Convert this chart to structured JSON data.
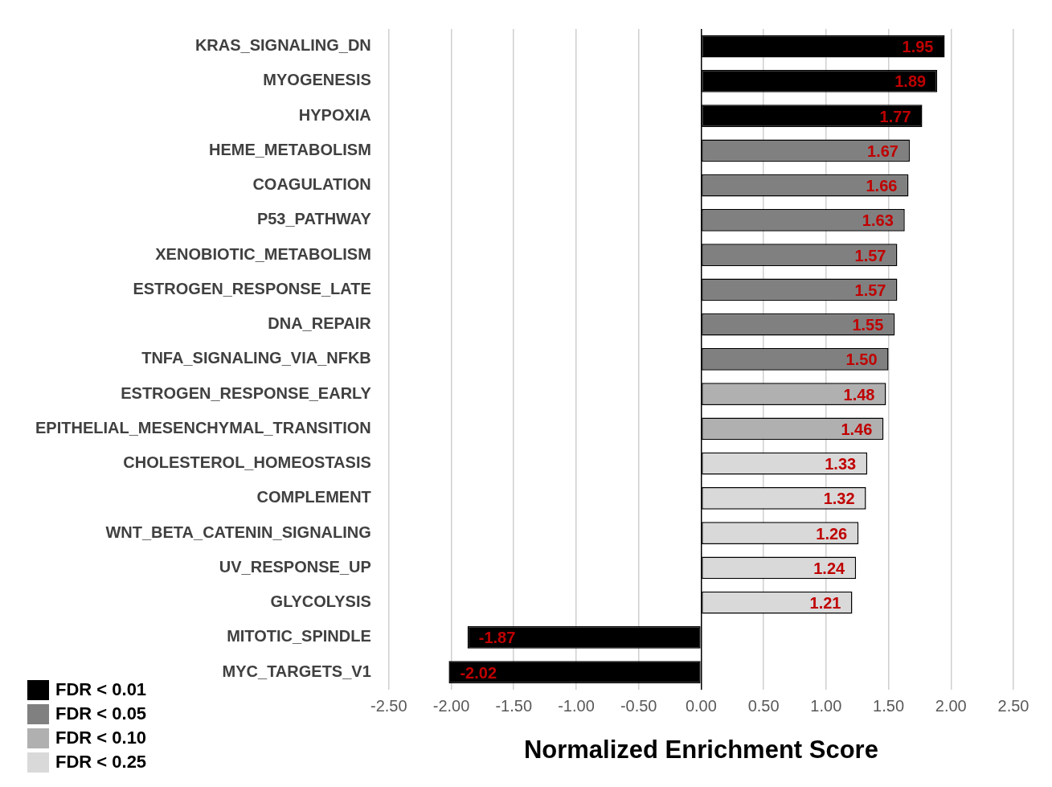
{
  "chart_data": {
    "type": "bar",
    "orientation": "horizontal",
    "xlabel": "Normalized Enrichment Score",
    "categories": [
      "KRAS_SIGNALING_DN",
      "MYOGENESIS",
      "HYPOXIA",
      "HEME_METABOLISM",
      "COAGULATION",
      "P53_PATHWAY",
      "XENOBIOTIC_METABOLISM",
      "ESTROGEN_RESPONSE_LATE",
      "DNA_REPAIR",
      "TNFA_SIGNALING_VIA_NFKB",
      "ESTROGEN_RESPONSE_EARLY",
      "EPITHELIAL_MESENCHYMAL_TRANSITION",
      "CHOLESTEROL_HOMEOSTASIS",
      "COMPLEMENT",
      "WNT_BETA_CATENIN_SIGNALING",
      "UV_RESPONSE_UP",
      "GLYCOLYSIS",
      "MITOTIC_SPINDLE",
      "MYC_TARGETS_V1"
    ],
    "series": [
      {
        "name": "FDR < 0.01",
        "color": "#000000",
        "values": [
          1.95,
          1.89,
          1.77,
          null,
          null,
          null,
          null,
          null,
          null,
          null,
          null,
          null,
          null,
          null,
          null,
          null,
          null,
          -1.87,
          -2.02
        ],
        "value_labels": [
          "1.95",
          "1.89",
          "1.77",
          null,
          null,
          null,
          null,
          null,
          null,
          null,
          null,
          null,
          null,
          null,
          null,
          null,
          null,
          "-1.87",
          "-2.02"
        ]
      },
      {
        "name": "FDR < 0.05",
        "color": "#808080",
        "values": [
          null,
          null,
          null,
          1.67,
          1.66,
          1.63,
          1.57,
          1.57,
          1.55,
          1.5,
          null,
          null,
          null,
          null,
          null,
          null,
          null,
          null,
          null
        ],
        "value_labels": [
          null,
          null,
          null,
          "1.67",
          "1.66",
          "1.63",
          "1.57",
          "1.57",
          "1.55",
          "1.50",
          null,
          null,
          null,
          null,
          null,
          null,
          null,
          null,
          null
        ]
      },
      {
        "name": "FDR < 0.10",
        "color": "#b0b0b0",
        "values": [
          null,
          null,
          null,
          null,
          null,
          null,
          null,
          null,
          null,
          null,
          1.48,
          1.46,
          null,
          null,
          null,
          null,
          null,
          null,
          null
        ],
        "value_labels": [
          null,
          null,
          null,
          null,
          null,
          null,
          null,
          null,
          null,
          null,
          "1.48",
          "1.46",
          null,
          null,
          null,
          null,
          null,
          null,
          null
        ]
      },
      {
        "name": "FDR < 0.25",
        "color": "#d9d9d9",
        "values": [
          null,
          null,
          null,
          null,
          null,
          null,
          null,
          null,
          null,
          null,
          null,
          null,
          1.33,
          1.32,
          1.26,
          1.24,
          1.21,
          null,
          null
        ],
        "value_labels": [
          null,
          null,
          null,
          null,
          null,
          null,
          null,
          null,
          null,
          null,
          null,
          null,
          "1.33",
          "1.32",
          "1.26",
          "1.24",
          "1.21",
          null,
          null
        ]
      }
    ],
    "xlim": [
      -2.5,
      2.5
    ],
    "xticks": [
      {
        "value": -2.5,
        "label": "-2.50"
      },
      {
        "value": -2,
        "label": "-2.00"
      },
      {
        "value": -1.5,
        "label": "-1.50"
      },
      {
        "value": -1,
        "label": "-1.00"
      },
      {
        "value": -0.5,
        "label": "-0.50"
      },
      {
        "value": 0,
        "label": "0.00"
      },
      {
        "value": 0.5,
        "label": "0.50"
      },
      {
        "value": 1,
        "label": "1.00"
      },
      {
        "value": 1.5,
        "label": "1.50"
      },
      {
        "value": 2,
        "label": "2.00"
      },
      {
        "value": 2.5,
        "label": "2.50"
      }
    ],
    "grid": "x",
    "legend": "bottom left"
  }
}
